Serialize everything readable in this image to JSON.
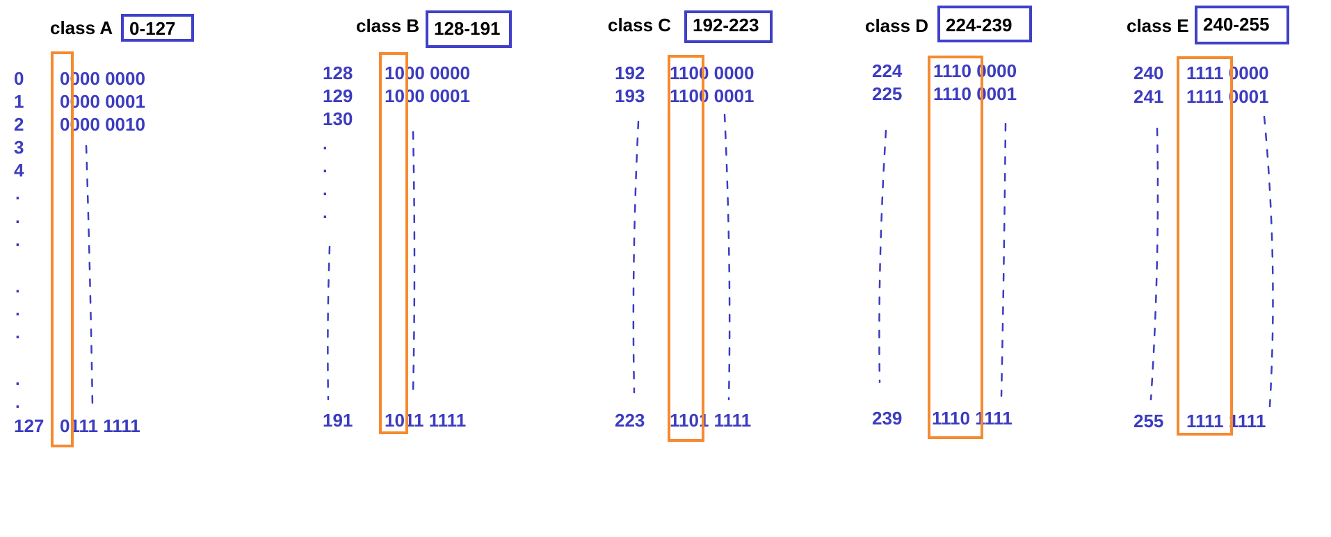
{
  "colors": {
    "blue": "#3c3cc0",
    "orange": "#f58a30",
    "black": "#000000"
  },
  "classes": [
    {
      "label": "class A",
      "range": "0-127",
      "rows": [
        {
          "num": "0",
          "bin": "0000 0000"
        },
        {
          "num": "1",
          "bin": "0000 0001"
        },
        {
          "num": "2",
          "bin": "0000 0010"
        },
        {
          "num": "3"
        },
        {
          "num": "4"
        }
      ],
      "last": {
        "num": "127",
        "bin": "0111 1111"
      }
    },
    {
      "label": "class B",
      "range": "128-191",
      "rows": [
        {
          "num": "128",
          "bin": "1000 0000"
        },
        {
          "num": "129",
          "bin": "1000 0001"
        },
        {
          "num": "130"
        }
      ],
      "last": {
        "num": "191",
        "bin": "1011 1111"
      }
    },
    {
      "label": "class C",
      "range": "192-223",
      "rows": [
        {
          "num": "192",
          "bin": "1100 0000"
        },
        {
          "num": "193",
          "bin": "1100 0001"
        }
      ],
      "last": {
        "num": "223",
        "bin": "1101 1111"
      }
    },
    {
      "label": "class D",
      "range": "224-239",
      "rows": [
        {
          "num": "224",
          "bin": "1110 0000"
        },
        {
          "num": "225",
          "bin": "1110 0001"
        }
      ],
      "last": {
        "num": "239",
        "bin": "1110 1111"
      }
    },
    {
      "label": "class E",
      "range": "240-255",
      "rows": [
        {
          "num": "240",
          "bin": "1111 0000"
        },
        {
          "num": "241",
          "bin": "1111 0001"
        }
      ],
      "last": {
        "num": "255",
        "bin": "1111 1111"
      }
    }
  ]
}
